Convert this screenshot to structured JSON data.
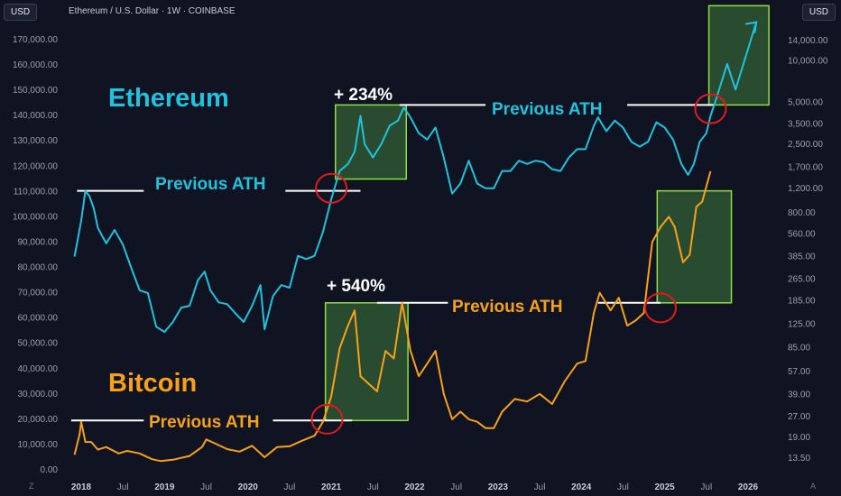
{
  "header": {
    "currency_left": "USD",
    "currency_right": "USD",
    "title": "Ethereum / U.S. Dollar · 1W · COINBASE"
  },
  "corners": {
    "left": "Z",
    "right": "A"
  },
  "colors": {
    "background": "#0f1322",
    "eth": "#1fc3dd",
    "btc": "#f7a11a",
    "box_fill": "#2f5a33",
    "box_stroke": "#8ee03f",
    "circle": "#e01b1b",
    "ath_line": "#ffffff"
  },
  "chart_data": {
    "type": "line",
    "title": "Ethereum / U.S. Dollar · 1W · COINBASE",
    "x_ticks": [
      "2018",
      "Jul",
      "2019",
      "Jul",
      "2020",
      "Jul",
      "2021",
      "Jul",
      "2022",
      "Jul",
      "2023",
      "Jul",
      "2024",
      "Jul",
      "2025",
      "Jul",
      "2026"
    ],
    "left_axis": {
      "unit": "USD",
      "ticks": [
        "170,000.00",
        "160,000.00",
        "150,000.00",
        "140,000.00",
        "130,000.00",
        "120,000.00",
        "110,000.00",
        "100,000.00",
        "90,000.00",
        "80,000.00",
        "70,000.00",
        "60,000.00",
        "50,000.00",
        "40,000.00",
        "30,000.00",
        "20,000.00",
        "10,000.00",
        "0.00"
      ],
      "ylim": [
        0,
        175000
      ]
    },
    "right_axis": {
      "unit": "USD",
      "ticks": [
        "14,000.00",
        "10,000.00",
        "5,000.00",
        "3,500.00",
        "2,500.00",
        "1,700.00",
        "1,200.00",
        "800.00",
        "560.00",
        "385.00",
        "265.00",
        "185.00",
        "125.00",
        "85.00",
        "57.00",
        "39.00",
        "27.00",
        "19.00",
        "13.50"
      ]
    },
    "series": [
      {
        "name": "Ethereum",
        "axis": "right",
        "points": [
          [
            2017.92,
            385
          ],
          [
            2018.0,
            700
          ],
          [
            2018.05,
            1150
          ],
          [
            2018.1,
            1050
          ],
          [
            2018.15,
            860
          ],
          [
            2018.2,
            620
          ],
          [
            2018.3,
            480
          ],
          [
            2018.4,
            600
          ],
          [
            2018.5,
            470
          ],
          [
            2018.6,
            320
          ],
          [
            2018.7,
            220
          ],
          [
            2018.8,
            210
          ],
          [
            2018.9,
            120
          ],
          [
            2019.0,
            110
          ],
          [
            2019.1,
            130
          ],
          [
            2019.2,
            165
          ],
          [
            2019.3,
            170
          ],
          [
            2019.4,
            260
          ],
          [
            2019.48,
            300
          ],
          [
            2019.55,
            220
          ],
          [
            2019.65,
            180
          ],
          [
            2019.75,
            175
          ],
          [
            2019.85,
            150
          ],
          [
            2019.95,
            130
          ],
          [
            2020.05,
            170
          ],
          [
            2020.15,
            240
          ],
          [
            2020.2,
            115
          ],
          [
            2020.3,
            200
          ],
          [
            2020.4,
            240
          ],
          [
            2020.5,
            230
          ],
          [
            2020.6,
            390
          ],
          [
            2020.7,
            370
          ],
          [
            2020.8,
            390
          ],
          [
            2020.9,
            580
          ],
          [
            2021.0,
            1000
          ],
          [
            2021.1,
            1600
          ],
          [
            2021.2,
            1800
          ],
          [
            2021.28,
            2200
          ],
          [
            2021.35,
            4000
          ],
          [
            2021.4,
            2500
          ],
          [
            2021.5,
            2000
          ],
          [
            2021.6,
            2500
          ],
          [
            2021.7,
            3400
          ],
          [
            2021.8,
            3700
          ],
          [
            2021.87,
            4600
          ],
          [
            2021.95,
            3900
          ],
          [
            2022.05,
            3000
          ],
          [
            2022.15,
            2700
          ],
          [
            2022.25,
            3300
          ],
          [
            2022.35,
            2000
          ],
          [
            2022.45,
            1100
          ],
          [
            2022.55,
            1300
          ],
          [
            2022.65,
            1900
          ],
          [
            2022.75,
            1300
          ],
          [
            2022.85,
            1200
          ],
          [
            2022.95,
            1200
          ],
          [
            2023.05,
            1600
          ],
          [
            2023.15,
            1600
          ],
          [
            2023.25,
            1900
          ],
          [
            2023.35,
            1800
          ],
          [
            2023.45,
            1900
          ],
          [
            2023.55,
            1850
          ],
          [
            2023.65,
            1650
          ],
          [
            2023.75,
            1600
          ],
          [
            2023.85,
            2000
          ],
          [
            2023.95,
            2300
          ],
          [
            2024.05,
            2300
          ],
          [
            2024.15,
            3400
          ],
          [
            2024.2,
            3900
          ],
          [
            2024.3,
            3100
          ],
          [
            2024.4,
            3700
          ],
          [
            2024.5,
            3300
          ],
          [
            2024.6,
            2600
          ],
          [
            2024.7,
            2400
          ],
          [
            2024.8,
            2600
          ],
          [
            2024.9,
            3600
          ],
          [
            2025.0,
            3300
          ],
          [
            2025.1,
            2700
          ],
          [
            2025.2,
            1800
          ],
          [
            2025.28,
            1500
          ],
          [
            2025.35,
            1800
          ],
          [
            2025.42,
            2600
          ],
          [
            2025.5,
            3000
          ],
          [
            2025.55,
            4000
          ],
          [
            2025.6,
            4900
          ],
          [
            2025.75,
            9500
          ],
          [
            2025.85,
            6200
          ],
          [
            2026.1,
            19000
          ]
        ]
      },
      {
        "name": "Bitcoin",
        "axis": "left",
        "points": [
          [
            2017.92,
            6000
          ],
          [
            2017.98,
            14000
          ],
          [
            2018.0,
            19000
          ],
          [
            2018.05,
            11000
          ],
          [
            2018.12,
            11000
          ],
          [
            2018.2,
            8000
          ],
          [
            2018.3,
            9000
          ],
          [
            2018.45,
            6500
          ],
          [
            2018.55,
            7500
          ],
          [
            2018.7,
            6500
          ],
          [
            2018.85,
            4200
          ],
          [
            2018.95,
            3500
          ],
          [
            2019.1,
            4000
          ],
          [
            2019.3,
            5500
          ],
          [
            2019.45,
            9000
          ],
          [
            2019.5,
            12000
          ],
          [
            2019.6,
            10500
          ],
          [
            2019.75,
            8200
          ],
          [
            2019.9,
            7200
          ],
          [
            2020.05,
            9500
          ],
          [
            2020.2,
            5000
          ],
          [
            2020.35,
            9000
          ],
          [
            2020.5,
            9300
          ],
          [
            2020.65,
            11500
          ],
          [
            2020.8,
            13500
          ],
          [
            2020.9,
            19000
          ],
          [
            2021.0,
            29000
          ],
          [
            2021.1,
            48000
          ],
          [
            2021.2,
            57000
          ],
          [
            2021.28,
            63000
          ],
          [
            2021.35,
            37000
          ],
          [
            2021.45,
            34000
          ],
          [
            2021.55,
            31000
          ],
          [
            2021.65,
            47000
          ],
          [
            2021.75,
            44000
          ],
          [
            2021.85,
            66000
          ],
          [
            2021.95,
            47000
          ],
          [
            2022.05,
            37000
          ],
          [
            2022.15,
            42000
          ],
          [
            2022.25,
            47000
          ],
          [
            2022.35,
            30000
          ],
          [
            2022.45,
            20000
          ],
          [
            2022.55,
            23000
          ],
          [
            2022.65,
            20000
          ],
          [
            2022.75,
            19000
          ],
          [
            2022.85,
            16500
          ],
          [
            2022.95,
            16500
          ],
          [
            2023.05,
            23000
          ],
          [
            2023.2,
            28000
          ],
          [
            2023.35,
            27000
          ],
          [
            2023.5,
            30000
          ],
          [
            2023.65,
            26000
          ],
          [
            2023.8,
            35000
          ],
          [
            2023.95,
            42000
          ],
          [
            2024.05,
            43000
          ],
          [
            2024.15,
            62000
          ],
          [
            2024.22,
            70000
          ],
          [
            2024.35,
            63000
          ],
          [
            2024.45,
            68000
          ],
          [
            2024.55,
            57000
          ],
          [
            2024.65,
            59000
          ],
          [
            2024.75,
            62000
          ],
          [
            2024.85,
            90000
          ],
          [
            2024.95,
            96000
          ],
          [
            2025.05,
            100000
          ],
          [
            2025.12,
            96000
          ],
          [
            2025.22,
            82000
          ],
          [
            2025.3,
            85000
          ],
          [
            2025.38,
            104000
          ],
          [
            2025.45,
            106000
          ],
          [
            2025.55,
            118000
          ]
        ]
      }
    ]
  },
  "annotations": {
    "eth_label": "Ethereum",
    "btc_label": "Bitcoin",
    "prev_ath": "Previous ATH",
    "eth_gain": "+ 234%",
    "btc_gain": "+ 540%"
  }
}
